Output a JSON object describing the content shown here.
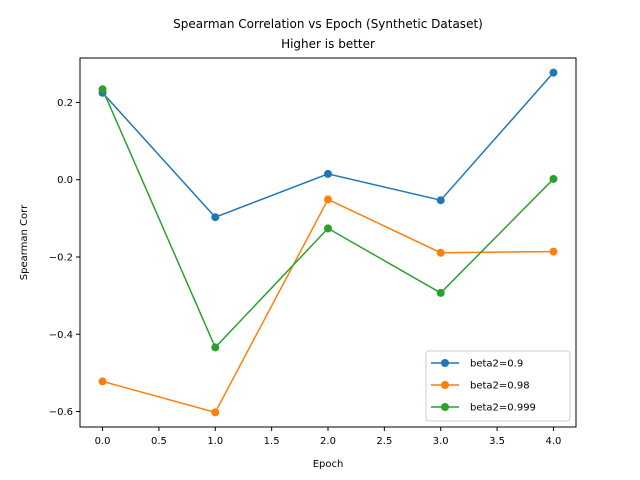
{
  "chart_data": {
    "type": "line",
    "title": "Spearman Correlation vs Epoch (Synthetic Dataset)",
    "subtitle": "Higher is better",
    "xlabel": "Epoch",
    "ylabel": "Spearman Corr",
    "x": [
      0,
      1,
      2,
      3,
      4
    ],
    "xlim": [
      -0.2,
      4.2
    ],
    "ylim": [
      -0.64,
      0.315
    ],
    "x_ticks": [
      "0.0",
      "0.5",
      "1.0",
      "1.5",
      "2.0",
      "2.5",
      "3.0",
      "3.5",
      "4.0"
    ],
    "y_ticks": [
      "0.2",
      "0.0",
      "−0.2",
      "−0.4",
      "−0.6"
    ],
    "grid": false,
    "legend_position": "lower-right",
    "series": [
      {
        "name": "beta2=0.9",
        "color": "#1f77b4",
        "values": [
          0.225,
          -0.097,
          0.015,
          -0.053,
          0.277
        ]
      },
      {
        "name": "beta2=0.98",
        "color": "#ff7f0e",
        "values": [
          -0.522,
          -0.602,
          -0.051,
          -0.189,
          -0.186
        ]
      },
      {
        "name": "beta2=0.999",
        "color": "#2ca02c",
        "values": [
          0.234,
          -0.434,
          -0.126,
          -0.293,
          0.002
        ]
      }
    ]
  }
}
